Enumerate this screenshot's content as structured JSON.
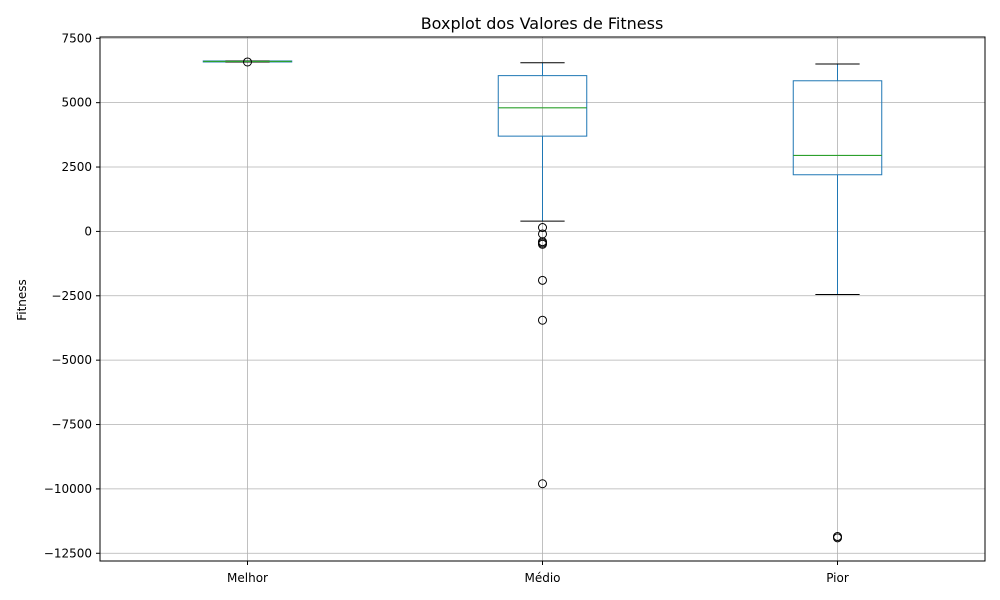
{
  "chart_data": {
    "type": "boxplot",
    "title": "Boxplot dos Valores de Fitness",
    "xlabel": "",
    "ylabel": "Fitness",
    "ylim": [
      -12800,
      7550
    ],
    "yticks": [
      7500,
      5000,
      2500,
      0,
      -2500,
      -5000,
      -7500,
      -10000,
      -12500
    ],
    "ytick_labels": [
      "7500",
      "5000",
      "2500",
      "0",
      "−2500",
      "−5000",
      "−7500",
      "−10000",
      "−12500"
    ],
    "grid": true,
    "categories": [
      "Melhor",
      "Médio",
      "Pior"
    ],
    "boxes": [
      {
        "name": "Melhor",
        "whisker_low": 6580,
        "q1": 6580,
        "median": 6600,
        "q3": 6620,
        "whisker_high": 6620,
        "outliers": [
          6580
        ]
      },
      {
        "name": "Médio",
        "whisker_low": 400,
        "q1": 3700,
        "median": 4800,
        "q3": 6050,
        "whisker_high": 6550,
        "outliers": [
          150,
          -100,
          -400,
          -450,
          -500,
          -1900,
          -3450,
          -9800
        ]
      },
      {
        "name": "Pior",
        "whisker_low": -2450,
        "q1": 2200,
        "median": 2950,
        "q3": 5850,
        "whisker_high": 6500,
        "outliers": [
          -11850,
          -11900
        ]
      }
    ],
    "colors": {
      "box": "#1f77b4",
      "median": "#2ca02c",
      "whisker_cap": "#000000",
      "grid": "#b0b0b0",
      "outlier": "#000000"
    }
  }
}
